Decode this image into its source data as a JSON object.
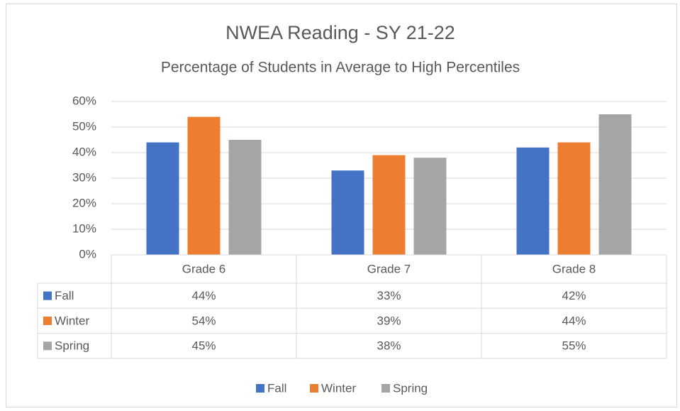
{
  "chart_data": {
    "type": "bar",
    "title": "NWEA Reading - SY 21-22",
    "subtitle": "Percentage of Students in Average to High Percentiles",
    "categories": [
      "Grade 6",
      "Grade 7",
      "Grade 8"
    ],
    "series": [
      {
        "name": "Fall",
        "color": "#4472c4",
        "values": [
          44,
          33,
          42
        ],
        "value_labels": [
          "44%",
          "33%",
          "42%"
        ]
      },
      {
        "name": "Winter",
        "color": "#ed7d31",
        "values": [
          54,
          39,
          44
        ],
        "value_labels": [
          "54%",
          "39%",
          "44%"
        ]
      },
      {
        "name": "Spring",
        "color": "#a5a5a5",
        "values": [
          45,
          38,
          55
        ],
        "value_labels": [
          "45%",
          "38%",
          "55%"
        ]
      }
    ],
    "ylim": [
      0,
      60
    ],
    "yticks": [
      {
        "value": 0,
        "label": "0%"
      },
      {
        "value": 10,
        "label": "10%"
      },
      {
        "value": 20,
        "label": "20%"
      },
      {
        "value": 30,
        "label": "30%"
      },
      {
        "value": 40,
        "label": "40%"
      },
      {
        "value": 50,
        "label": "50%"
      },
      {
        "value": 60,
        "label": "60%"
      }
    ],
    "grid": true,
    "legend": "bottom"
  }
}
